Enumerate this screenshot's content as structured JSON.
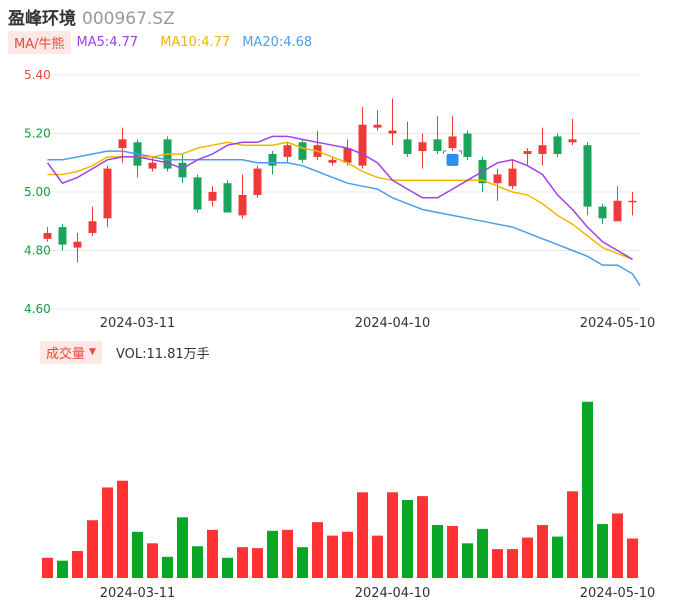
{
  "header": {
    "name": "盈峰环境",
    "code": "000967.SZ"
  },
  "ma_legend": {
    "tag": "MA/牛熊",
    "ma5": "MA5:4.77",
    "ma10": "MA10:4.77",
    "ma20": "MA20:4.68"
  },
  "vol_legend": {
    "tag": "成交量",
    "caret": "▼",
    "value": "VOL:11.81万手"
  },
  "colors": {
    "up": "#f03a3a",
    "down": "#1aa35a",
    "ma5": "#a040e8",
    "ma10": "#f0b800",
    "ma20": "#4a9ee8",
    "grid": "#e8e8e8",
    "vol_up": "#ff3333",
    "vol_down": "#0aa626"
  },
  "chart_data": [
    {
      "type": "candlestick",
      "ylim": [
        4.6,
        5.4
      ],
      "yticks": [
        "5.40",
        "5.20",
        "5.00",
        "4.80",
        "4.60"
      ],
      "xticks": [
        {
          "label": "2024-03-11",
          "index": 6
        },
        {
          "label": "2024-04-10",
          "index": 23
        },
        {
          "label": "2024-05-10",
          "index": 38
        }
      ],
      "candles": [
        {
          "o": 4.84,
          "c": 4.86,
          "h": 4.88,
          "l": 4.83
        },
        {
          "o": 4.88,
          "c": 4.82,
          "h": 4.89,
          "l": 4.8
        },
        {
          "o": 4.81,
          "c": 4.83,
          "h": 4.86,
          "l": 4.76
        },
        {
          "o": 4.86,
          "c": 4.9,
          "h": 4.95,
          "l": 4.85
        },
        {
          "o": 4.91,
          "c": 5.08,
          "h": 5.09,
          "l": 4.88
        },
        {
          "o": 5.15,
          "c": 5.18,
          "h": 5.22,
          "l": 5.1
        },
        {
          "o": 5.17,
          "c": 5.09,
          "h": 5.18,
          "l": 5.05
        },
        {
          "o": 5.08,
          "c": 5.1,
          "h": 5.12,
          "l": 5.07
        },
        {
          "o": 5.18,
          "c": 5.08,
          "h": 5.19,
          "l": 5.07
        },
        {
          "o": 5.1,
          "c": 5.05,
          "h": 5.13,
          "l": 5.03
        },
        {
          "o": 5.05,
          "c": 4.94,
          "h": 5.06,
          "l": 4.93
        },
        {
          "o": 4.97,
          "c": 5.0,
          "h": 5.02,
          "l": 4.95
        },
        {
          "o": 5.03,
          "c": 4.93,
          "h": 5.04,
          "l": 4.93
        },
        {
          "o": 4.92,
          "c": 4.99,
          "h": 5.06,
          "l": 4.91
        },
        {
          "o": 4.99,
          "c": 5.08,
          "h": 5.09,
          "l": 4.98
        },
        {
          "o": 5.13,
          "c": 5.09,
          "h": 5.14,
          "l": 5.06
        },
        {
          "o": 5.12,
          "c": 5.16,
          "h": 5.17,
          "l": 5.1
        },
        {
          "o": 5.17,
          "c": 5.11,
          "h": 5.18,
          "l": 5.1
        },
        {
          "o": 5.12,
          "c": 5.16,
          "h": 5.21,
          "l": 5.11
        },
        {
          "o": 5.1,
          "c": 5.11,
          "h": 5.12,
          "l": 5.09
        },
        {
          "o": 5.1,
          "c": 5.15,
          "h": 5.18,
          "l": 5.09
        },
        {
          "o": 5.09,
          "c": 5.23,
          "h": 5.29,
          "l": 5.08
        },
        {
          "o": 5.22,
          "c": 5.23,
          "h": 5.28,
          "l": 5.21
        },
        {
          "o": 5.2,
          "c": 5.21,
          "h": 5.32,
          "l": 5.16
        },
        {
          "o": 5.18,
          "c": 5.13,
          "h": 5.24,
          "l": 5.12
        },
        {
          "o": 5.14,
          "c": 5.17,
          "h": 5.2,
          "l": 5.08
        },
        {
          "o": 5.18,
          "c": 5.14,
          "h": 5.26,
          "l": 5.13
        },
        {
          "o": 5.15,
          "c": 5.19,
          "h": 5.26,
          "l": 5.14
        },
        {
          "o": 5.2,
          "c": 5.12,
          "h": 5.21,
          "l": 5.11
        },
        {
          "o": 5.11,
          "c": 5.03,
          "h": 5.12,
          "l": 5.0
        },
        {
          "o": 5.03,
          "c": 5.06,
          "h": 5.08,
          "l": 4.97
        },
        {
          "o": 5.02,
          "c": 5.08,
          "h": 5.11,
          "l": 5.01
        },
        {
          "o": 5.13,
          "c": 5.14,
          "h": 5.15,
          "l": 5.09
        },
        {
          "o": 5.13,
          "c": 5.16,
          "h": 5.22,
          "l": 5.09
        },
        {
          "o": 5.19,
          "c": 5.13,
          "h": 5.2,
          "l": 5.12
        },
        {
          "o": 5.17,
          "c": 5.18,
          "h": 5.25,
          "l": 5.16
        },
        {
          "o": 5.16,
          "c": 4.95,
          "h": 5.17,
          "l": 4.92
        },
        {
          "o": 4.95,
          "c": 4.91,
          "h": 4.96,
          "l": 4.89
        },
        {
          "o": 4.9,
          "c": 4.97,
          "h": 5.02,
          "l": 4.9
        },
        {
          "o": 4.97,
          "c": 4.97,
          "h": 5.0,
          "l": 4.92
        }
      ],
      "ma5": [
        5.1,
        5.03,
        5.05,
        5.08,
        5.11,
        5.12,
        5.12,
        5.11,
        5.1,
        5.08,
        5.11,
        5.13,
        5.16,
        5.17,
        5.17,
        5.19,
        5.19,
        5.18,
        5.17,
        5.16,
        5.15,
        5.13,
        5.1,
        5.04,
        5.01,
        4.98,
        4.98,
        5.01,
        5.04,
        5.07,
        5.1,
        5.11,
        5.09,
        5.06,
        4.99,
        4.94,
        4.88,
        4.83,
        4.8,
        4.77
      ],
      "ma10": [
        5.06,
        5.06,
        5.07,
        5.09,
        5.12,
        5.12,
        5.12,
        5.12,
        5.13,
        5.13,
        5.15,
        5.16,
        5.17,
        5.16,
        5.16,
        5.16,
        5.17,
        5.15,
        5.14,
        5.12,
        5.1,
        5.07,
        5.05,
        5.04,
        5.04,
        5.04,
        5.04,
        5.04,
        5.04,
        5.04,
        5.02,
        5.0,
        4.99,
        4.96,
        4.92,
        4.89,
        4.85,
        4.81,
        4.79,
        4.77
      ],
      "ma20": [
        5.11,
        5.11,
        5.12,
        5.13,
        5.14,
        5.14,
        5.13,
        5.12,
        5.11,
        5.11,
        5.11,
        5.11,
        5.11,
        5.11,
        5.1,
        5.1,
        5.1,
        5.09,
        5.07,
        5.05,
        5.03,
        5.02,
        5.01,
        4.98,
        4.96,
        4.94,
        4.93,
        4.92,
        4.91,
        4.9,
        4.89,
        4.88,
        4.86,
        4.84,
        4.82,
        4.8,
        4.78,
        4.75,
        4.75,
        4.72
      ],
      "ma20_end": 4.68,
      "marker": {
        "index": 27,
        "value": 5.11
      }
    },
    {
      "type": "bar",
      "volumes": [
        21,
        18,
        28,
        60,
        94,
        101,
        48,
        36,
        22,
        63,
        33,
        50,
        21,
        32,
        31,
        49,
        50,
        32,
        58,
        44,
        48,
        89,
        44,
        89,
        81,
        85,
        55,
        54,
        36,
        51,
        30,
        30,
        42,
        55,
        43,
        90,
        183,
        56,
        67,
        41
      ],
      "vol_max": 190,
      "xticks": [
        {
          "label": "2024-03-11",
          "index": 6
        },
        {
          "label": "2024-04-10",
          "index": 23
        },
        {
          "label": "2024-05-10",
          "index": 38
        }
      ]
    }
  ]
}
